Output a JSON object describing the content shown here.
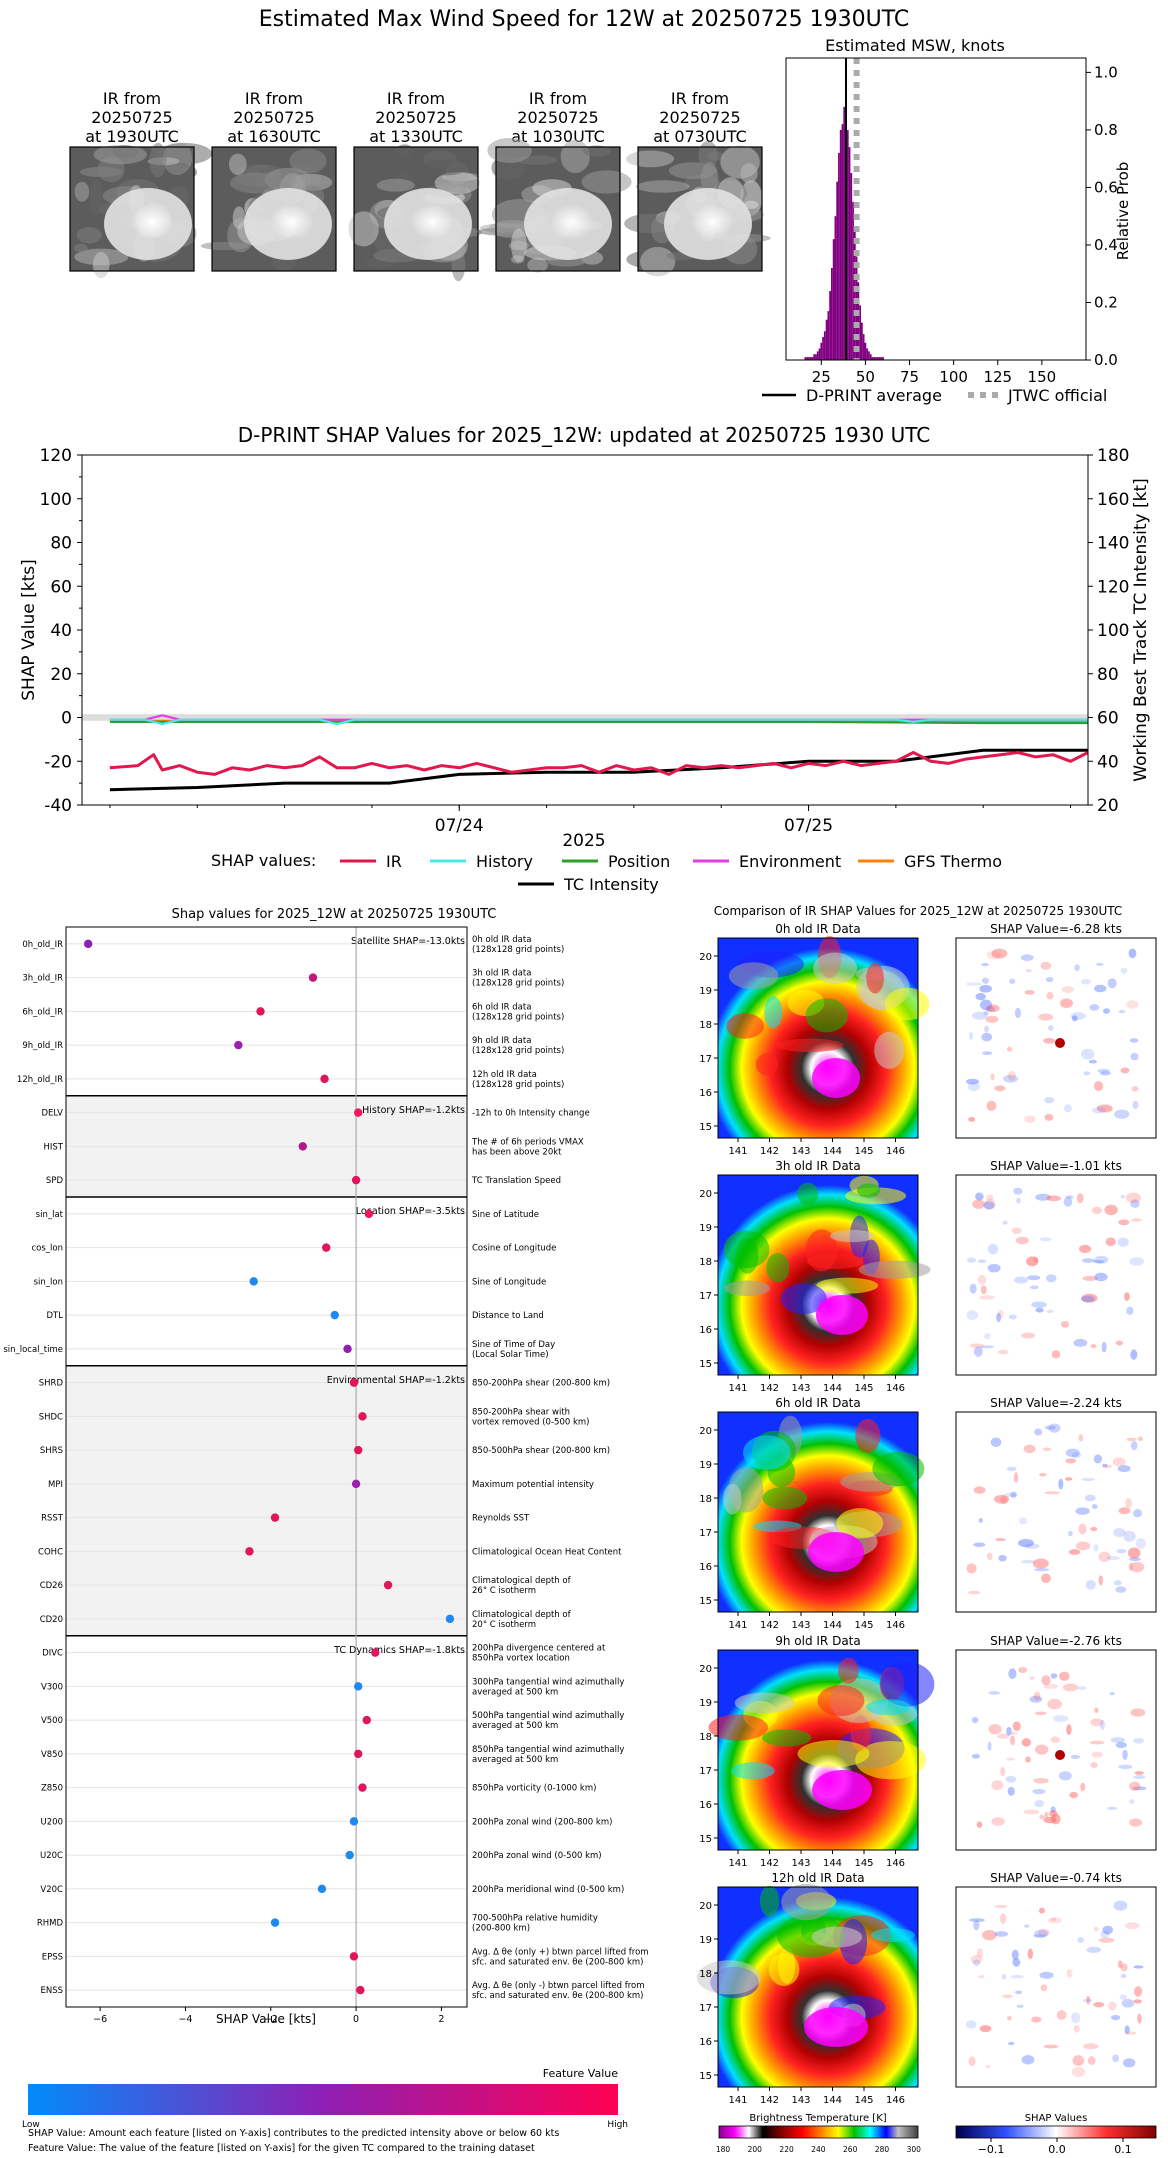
{
  "page_title": "Estimated Max Wind Speed for 12W at 20250725 1930UTC",
  "ir_thumbnails": [
    {
      "lines": [
        "IR from",
        "20250725",
        "at 1930UTC"
      ]
    },
    {
      "lines": [
        "IR from",
        "20250725",
        "at 1630UTC"
      ]
    },
    {
      "lines": [
        "IR from",
        "20250725",
        "at 1330UTC"
      ]
    },
    {
      "lines": [
        "IR from",
        "20250725",
        "at 1030UTC"
      ]
    },
    {
      "lines": [
        "IR from",
        "20250725",
        "at 0730UTC"
      ]
    }
  ],
  "histogram_legend": {
    "avg": "D-PRINT average",
    "jtwc": "JTWC official"
  },
  "shap_legend": {
    "prefix": "SHAP values:",
    "items": [
      "IR",
      "History",
      "Position",
      "Environment",
      "GFS Thermo",
      "TC Intensity"
    ]
  },
  "feature_scale": {
    "title": "Feature Value",
    "low": "Low",
    "high": "High"
  },
  "footnotes": [
    "SHAP Value: Amount each feature [listed on Y-axis] contributes to the predicted intensity above or below 60 kts",
    "Feature Value: The value of the feature [listed on Y-axis] for the given TC compared to the training dataset"
  ],
  "colors": {
    "IR": "#e0184e",
    "History": "#4de8e8",
    "Position": "#2ca02c",
    "Environment": "#e040e0",
    "GFS Thermo": "#ff7f0e",
    "TC Intensity": "#000000",
    "hist_bar": "#800080"
  },
  "chart_data": [
    {
      "type": "bar",
      "title": "Estimated MSW, knots",
      "ylabel": "Relative Prob",
      "xlim": [
        5,
        175
      ],
      "ylim": [
        0,
        1.05
      ],
      "xticks": [
        25,
        50,
        75,
        100,
        125,
        150
      ],
      "yticks": [
        0.0,
        0.2,
        0.4,
        0.6,
        0.8,
        1.0
      ],
      "bin_width": 1,
      "bins": [
        [
          16,
          0.01
        ],
        [
          17,
          0.01
        ],
        [
          18,
          0.01
        ],
        [
          19,
          0.01
        ],
        [
          20,
          0.01
        ],
        [
          21,
          0.02
        ],
        [
          22,
          0.02
        ],
        [
          23,
          0.03
        ],
        [
          24,
          0.04
        ],
        [
          25,
          0.06
        ],
        [
          26,
          0.08
        ],
        [
          27,
          0.1
        ],
        [
          28,
          0.14
        ],
        [
          29,
          0.17
        ],
        [
          30,
          0.24
        ],
        [
          31,
          0.32
        ],
        [
          32,
          0.42
        ],
        [
          33,
          0.5
        ],
        [
          34,
          0.62
        ],
        [
          35,
          0.72
        ],
        [
          36,
          0.8
        ],
        [
          37,
          0.82
        ],
        [
          38,
          0.88
        ],
        [
          39,
          0.85
        ],
        [
          40,
          0.8
        ],
        [
          41,
          0.74
        ],
        [
          42,
          0.65
        ],
        [
          43,
          0.55
        ],
        [
          44,
          0.45
        ],
        [
          45,
          0.36
        ],
        [
          46,
          0.27
        ],
        [
          47,
          0.19
        ],
        [
          48,
          0.13
        ],
        [
          49,
          0.09
        ],
        [
          50,
          0.06
        ],
        [
          51,
          0.04
        ],
        [
          52,
          0.03
        ],
        [
          53,
          0.02
        ],
        [
          54,
          0.01
        ],
        [
          55,
          0.01
        ],
        [
          56,
          0.01
        ],
        [
          57,
          0.01
        ],
        [
          58,
          0.01
        ],
        [
          59,
          0.01
        ],
        [
          60,
          0.01
        ]
      ],
      "dprint_average": 39,
      "jtwc_official": 45
    },
    {
      "type": "line",
      "title": "D-PRINT SHAP Values for 2025_12W: updated at 20250725 1930 UTC",
      "ylabel": "SHAP Value [kts]",
      "ylabel_right": "Working Best Track TC Intensity [kt]",
      "xlabel": "2025",
      "ylim": [
        -40,
        120
      ],
      "ylim_right": [
        20,
        180
      ],
      "yticks": [
        -40,
        -20,
        0,
        20,
        40,
        60,
        80,
        100,
        120
      ],
      "yticks_right": [
        20,
        40,
        60,
        80,
        100,
        120,
        140,
        160,
        180
      ],
      "xlim": [
        -1.08,
        1.8
      ],
      "xticks": [
        {
          "x": 0,
          "label": "07/24"
        },
        {
          "x": 1,
          "label": "07/25"
        }
      ],
      "series": [
        {
          "name": "IR",
          "x": [
            -1.0,
            -0.92,
            -0.875,
            -0.85,
            -0.8,
            -0.75,
            -0.7,
            -0.65,
            -0.6,
            -0.55,
            -0.5,
            -0.45,
            -0.4,
            -0.35,
            -0.3,
            -0.25,
            -0.2,
            -0.15,
            -0.1,
            -0.05,
            0.0,
            0.05,
            0.1,
            0.15,
            0.2,
            0.25,
            0.3,
            0.35,
            0.4,
            0.45,
            0.5,
            0.55,
            0.6,
            0.65,
            0.7,
            0.75,
            0.8,
            0.85,
            0.9,
            0.95,
            1.0,
            1.05,
            1.1,
            1.15,
            1.2,
            1.25,
            1.25,
            1.3,
            1.35,
            1.4,
            1.45,
            1.5,
            1.55,
            1.6,
            1.65,
            1.7,
            1.75,
            1.8
          ],
          "y": [
            -23,
            -22,
            -17,
            -24,
            -22,
            -25,
            -26,
            -23,
            -24,
            -22,
            -23,
            -22,
            -18,
            -23,
            -23,
            -21,
            -23,
            -22,
            -24,
            -22,
            -23,
            -21,
            -23,
            -25,
            -24,
            -23,
            -23,
            -22,
            -25,
            -22,
            -24,
            -23,
            -26,
            -22,
            -23,
            -22,
            -23,
            -22,
            -21,
            -23,
            -21,
            -22,
            -20,
            -22,
            -21,
            -20,
            -20,
            -16,
            -20,
            -21,
            -19,
            -18,
            -17,
            -16,
            -18,
            -17,
            -20,
            -16
          ]
        },
        {
          "name": "History",
          "x": [
            -1.0,
            -0.9,
            -0.85,
            -0.8,
            -0.4,
            -0.35,
            -0.3,
            0.2,
            0.6,
            0.8,
            1.0,
            1.25,
            1.3,
            1.35,
            1.8
          ],
          "y": [
            -1,
            -1,
            -3,
            -1,
            -1,
            -3,
            -1,
            -1,
            -1,
            -1,
            -1,
            -1,
            -2,
            -1,
            -1
          ]
        },
        {
          "name": "Position",
          "x": [
            -1.0,
            -0.5,
            0.0,
            0.5,
            1.0,
            1.5,
            1.8
          ],
          "y": [
            -2,
            -2,
            -2,
            -2,
            -2,
            -2.5,
            -2.5
          ]
        },
        {
          "name": "Environment",
          "x": [
            -1.0,
            -0.9,
            -0.85,
            -0.8,
            -0.4,
            0.0,
            0.5,
            1.0,
            1.5,
            1.8
          ],
          "y": [
            -1,
            -1,
            1,
            -1,
            -1,
            -1,
            -1,
            -1,
            -1,
            -1
          ]
        },
        {
          "name": "GFS Thermo",
          "x": [
            -1.0,
            1.8
          ],
          "y": [
            -1.5,
            -1.5
          ]
        },
        {
          "name": "TC Intensity",
          "axis": "right",
          "x": [
            -1.0,
            -0.75,
            -0.5,
            -0.25,
            -0.2,
            -0.1,
            0.0,
            0.25,
            0.5,
            0.75,
            1.0,
            1.25,
            1.5,
            1.8
          ],
          "y": [
            27,
            28,
            30,
            30,
            30,
            32,
            34,
            35,
            35,
            37,
            40,
            40,
            45,
            45
          ]
        }
      ]
    },
    {
      "type": "scatter",
      "title": "Shap values for 2025_12W at 20250725 1930UTC",
      "xlabel": "SHAP Value [kts]",
      "xlim": [
        -6.8,
        2.6
      ],
      "xticks": [
        -6,
        -4,
        -2,
        0,
        2
      ],
      "groups": [
        {
          "label": "Satellite SHAP=-13.0kts",
          "shaded": false,
          "features": [
            {
              "name": "0h_old_IR",
              "desc": [
                "0h old IR data",
                "(128x128 grid points)"
              ],
              "shap": -6.28,
              "color": "#8e1fb4"
            },
            {
              "name": "3h_old_IR",
              "desc": [
                "3h old IR data",
                "(128x128 grid points)"
              ],
              "shap": -1.01,
              "color": "#c4157f"
            },
            {
              "name": "6h_old_IR",
              "desc": [
                "6h old IR data",
                "(128x128 grid points)"
              ],
              "shap": -2.24,
              "color": "#e0155e"
            },
            {
              "name": "9h_old_IR",
              "desc": [
                "9h old IR data",
                "(128x128 grid points)"
              ],
              "shap": -2.76,
              "color": "#9c1fb0"
            },
            {
              "name": "12h_old_IR",
              "desc": [
                "12h old IR data",
                "(128x128 grid points)"
              ],
              "shap": -0.74,
              "color": "#e0155e"
            }
          ]
        },
        {
          "label": "History SHAP=-1.2kts",
          "shaded": true,
          "features": [
            {
              "name": "DELV",
              "desc": [
                "-12h to 0h Intensity change"
              ],
              "shap": 0.05,
              "color": "#f0155c"
            },
            {
              "name": "HIST",
              "desc": [
                "The # of 6h periods VMAX",
                "has been above 20kt"
              ],
              "shap": -1.25,
              "color": "#b0188e"
            },
            {
              "name": "SPD",
              "desc": [
                "TC Translation Speed"
              ],
              "shap": 0.0,
              "color": "#e0155e"
            }
          ]
        },
        {
          "label": "Location SHAP=-3.5kts",
          "shaded": false,
          "features": [
            {
              "name": "sin_lat",
              "desc": [
                "Sine of Latitude"
              ],
              "shap": 0.3,
              "color": "#f0155c"
            },
            {
              "name": "cos_lon",
              "desc": [
                "Cosine of Longitude"
              ],
              "shap": -0.7,
              "color": "#e0155e"
            },
            {
              "name": "sin_lon",
              "desc": [
                "Sine of Longitude"
              ],
              "shap": -2.4,
              "color": "#1e8af0"
            },
            {
              "name": "DTL",
              "desc": [
                "Distance to Land"
              ],
              "shap": -0.5,
              "color": "#1e8af0"
            },
            {
              "name": "sin_local_time",
              "desc": [
                "Sine of Time of Day",
                "(Local Solar Time)"
              ],
              "shap": -0.2,
              "color": "#8e1fb4"
            }
          ]
        },
        {
          "label": "Environmental SHAP=-1.2kts",
          "shaded": true,
          "features": [
            {
              "name": "SHRD",
              "desc": [
                "850-200hPa shear (200-800 km)"
              ],
              "shap": -0.05,
              "color": "#e0155e"
            },
            {
              "name": "SHDC",
              "desc": [
                "850-200hPa shear with",
                "vortex removed (0-500 km)"
              ],
              "shap": 0.15,
              "color": "#e0155e"
            },
            {
              "name": "SHRS",
              "desc": [
                "850-500hPa shear (200-800 km)"
              ],
              "shap": 0.05,
              "color": "#e0155e"
            },
            {
              "name": "MPI",
              "desc": [
                "Maximum potential intensity"
              ],
              "shap": 0.0,
              "color": "#9c1fb0"
            },
            {
              "name": "RSST",
              "desc": [
                "Reynolds SST"
              ],
              "shap": -1.9,
              "color": "#e0155e"
            },
            {
              "name": "COHC",
              "desc": [
                "Climatological Ocean Heat Content"
              ],
              "shap": -2.5,
              "color": "#e0155e"
            },
            {
              "name": "CD26",
              "desc": [
                "Climatological depth of",
                "26° C isotherm"
              ],
              "shap": 0.75,
              "color": "#e0155e"
            },
            {
              "name": "CD20",
              "desc": [
                "Climatological depth of",
                "20° C isotherm"
              ],
              "shap": 2.2,
              "color": "#1e8af0"
            }
          ]
        },
        {
          "label": "TC Dynamics SHAP=-1.8kts",
          "shaded": false,
          "features": [
            {
              "name": "DIVC",
              "desc": [
                "200hPa divergence centered at",
                "850hPa vortex location"
              ],
              "shap": 0.45,
              "color": "#e0155e"
            },
            {
              "name": "V300",
              "desc": [
                "300hPa tangential wind azimuthally",
                "averaged at 500 km"
              ],
              "shap": 0.05,
              "color": "#1e8af0"
            },
            {
              "name": "V500",
              "desc": [
                "500hPa tangential wind azimuthally",
                "averaged at 500 km"
              ],
              "shap": 0.25,
              "color": "#e0155e"
            },
            {
              "name": "V850",
              "desc": [
                "850hPa tangential wind azimuthally",
                "averaged at 500 km"
              ],
              "shap": 0.05,
              "color": "#e0155e"
            },
            {
              "name": "Z850",
              "desc": [
                "850hPa vorticity (0-1000 km)"
              ],
              "shap": 0.15,
              "color": "#e0155e"
            },
            {
              "name": "U200",
              "desc": [
                "200hPa zonal wind (200-800 km)"
              ],
              "shap": -0.05,
              "color": "#1e8af0"
            },
            {
              "name": "U20C",
              "desc": [
                "200hPa zonal wind (0-500 km)"
              ],
              "shap": -0.15,
              "color": "#1e8af0"
            },
            {
              "name": "V20C",
              "desc": [
                "200hPa meridional wind (0-500 km)"
              ],
              "shap": -0.8,
              "color": "#1e8af0"
            },
            {
              "name": "RHMD",
              "desc": [
                "700-500hPa relative humidity",
                "(200-800 km)"
              ],
              "shap": -1.9,
              "color": "#1e8af0"
            },
            {
              "name": "EPSS",
              "desc": [
                "Avg. Δ θe (only +) btwn parcel lifted from",
                "sfc. and saturated env. θe (200-800 km)"
              ],
              "shap": -0.05,
              "color": "#e0155e"
            },
            {
              "name": "ENSS",
              "desc": [
                "Avg. Δ θe (only -) btwn parcel lifted from",
                "sfc. and saturated env. θe (200-800 km)"
              ],
              "shap": 0.1,
              "color": "#e0155e"
            }
          ]
        }
      ]
    },
    {
      "type": "heatmap",
      "title": "Comparison of IR SHAP Values for 2025_12W at 20250725 1930UTC",
      "ir_xticks": [
        141,
        142,
        143,
        144,
        145,
        146
      ],
      "ir_yticks": [
        15,
        16,
        17,
        18,
        19,
        20
      ],
      "panels": [
        {
          "ir_title": "0h old IR Data",
          "shap_title": "SHAP Value=-6.28 kts"
        },
        {
          "ir_title": "3h old IR Data",
          "shap_title": "SHAP Value=-1.01 kts"
        },
        {
          "ir_title": "6h old IR Data",
          "shap_title": "SHAP Value=-2.24 kts"
        },
        {
          "ir_title": "9h old IR Data",
          "shap_title": "SHAP Value=-2.76 kts"
        },
        {
          "ir_title": "12h old IR Data",
          "shap_title": "SHAP Value=-0.74 kts"
        }
      ],
      "ir_colorbar": {
        "label": "Brightness Temperature [K]",
        "ticks": [
          180,
          200,
          220,
          240,
          260,
          280,
          300
        ]
      },
      "shap_colorbar": {
        "label": "SHAP Values",
        "ticks": [
          "−0.1",
          "0.0",
          "0.1"
        ]
      }
    }
  ]
}
